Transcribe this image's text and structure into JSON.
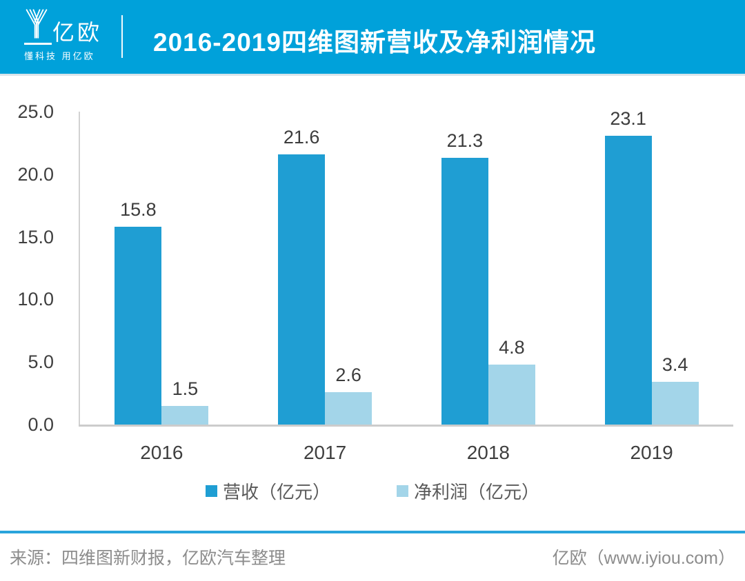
{
  "header": {
    "logo_text": "亿欧",
    "logo_tagline": "懂科技 用亿欧",
    "title": "2016-2019四维图新营收及净利润情况"
  },
  "chart_data": {
    "type": "bar",
    "title": "2016-2019四维图新营收及净利润情况",
    "categories": [
      "2016",
      "2017",
      "2018",
      "2019"
    ],
    "series": [
      {
        "name": "营收（亿元）",
        "color": "#1F9ED3",
        "values": [
          15.8,
          21.6,
          21.3,
          23.1
        ]
      },
      {
        "name": "净利润（亿元）",
        "color": "#A3D5E9",
        "values": [
          1.5,
          2.6,
          4.8,
          3.4
        ]
      }
    ],
    "ylim": [
      0,
      25
    ],
    "ytick_step": 5,
    "ytick_labels": [
      "0.0",
      "5.0",
      "10.0",
      "15.0",
      "20.0",
      "25.0"
    ],
    "grid": false,
    "legend_position": "bottom",
    "value_labels": true
  },
  "footer": {
    "source": "来源：四维图新财报，亿欧汽车整理",
    "site": "亿欧（www.iyiou.com）"
  },
  "colors": {
    "header_bg": "#00A1DA",
    "accent_line": "#2AA4DC",
    "axis_line": "#D2D2D2",
    "tick_text": "#3F3F3F",
    "legend_text": "#595959",
    "footer_text": "#8C8C8C",
    "bar_revenue": "#1F9ED3",
    "bar_profit": "#A3D5E9"
  }
}
